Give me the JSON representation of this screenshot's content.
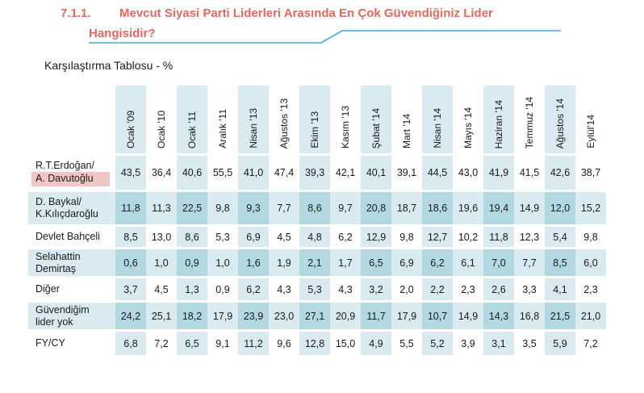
{
  "heading": {
    "number": "7.1.1.",
    "title_line1": "Mevcut Siyasi Parti Liderleri Arasında En Çok Güvendiğiniz Lider",
    "title_line2": "Hangisidir?"
  },
  "subtitle": "Karşılaştırma Tablosu  - %",
  "colors": {
    "title_red": "#E2685F",
    "rule_blue": "#3AAEDB",
    "cell_light_blue": "#D9EAF1",
    "cell_dark_blue": "#B2D8E2",
    "highlight_pink": "#F1C7C5",
    "text": "#1A1A1A"
  },
  "chart_data": {
    "type": "table",
    "title": "Mevcut Siyasi Parti Liderleri Arasında En Çok Güvendiğiniz Lider Hangisidir?",
    "unit": "%",
    "columns": [
      "Ocak '09",
      "Ocak '10",
      "Ocak '11",
      "Aralık '11",
      "Nisan '13",
      "Ağustos '13",
      "Ekim '13",
      "Kasım '13",
      "Şubat '14",
      "Mart '14",
      "Nisan '14",
      "Mayıs '14",
      "Haziran '14",
      "Temmuz '14",
      "Ağustos '14",
      "Eylül'14"
    ],
    "rows": [
      {
        "label_lines": [
          "R.T.Erdoğan/",
          "A. Davutoğlu"
        ],
        "highlight_second_line": true,
        "shaded": false,
        "values": [
          "43,5",
          "36,4",
          "40,6",
          "55,5",
          "41,0",
          "47,4",
          "39,3",
          "42,1",
          "40,1",
          "39,1",
          "44,5",
          "43,0",
          "41,9",
          "41,5",
          "42,6",
          "38,7"
        ]
      },
      {
        "label_lines": [
          "D. Baykal/",
          "K.Kılıçdaroğlu"
        ],
        "highlight_second_line": false,
        "shaded": true,
        "values": [
          "11,8",
          "11,3",
          "22,5",
          "9,8",
          "9,3",
          "7,7",
          "8,6",
          "9,7",
          "20,8",
          "18,7",
          "18,6",
          "19,6",
          "19,4",
          "14,9",
          "12,0",
          "15,2"
        ]
      },
      {
        "label_lines": [
          "Devlet Bahçeli"
        ],
        "highlight_second_line": false,
        "shaded": false,
        "values": [
          "8,5",
          "13,0",
          "8,6",
          "5,3",
          "6,9",
          "4,5",
          "4,8",
          "6,2",
          "12,9",
          "9,8",
          "12,7",
          "10,2",
          "11,8",
          "12,3",
          "5,4",
          "9,8"
        ]
      },
      {
        "label_lines": [
          "Selahattin",
          "Demirtaş"
        ],
        "highlight_second_line": false,
        "shaded": true,
        "values": [
          "0,6",
          "1,0",
          "0,9",
          "1,0",
          "1,6",
          "1,9",
          "2,1",
          "1,7",
          "6,5",
          "6,9",
          "6,2",
          "6,1",
          "7,0",
          "7,7",
          "8,5",
          "6,0"
        ]
      },
      {
        "label_lines": [
          "Diğer"
        ],
        "highlight_second_line": false,
        "shaded": false,
        "values": [
          "3,7",
          "4,5",
          "1,3",
          "0,9",
          "6,2",
          "4,3",
          "5,3",
          "4,3",
          "3,2",
          "2,0",
          "2,2",
          "2,3",
          "2,6",
          "3,3",
          "4,1",
          "2,3"
        ]
      },
      {
        "label_lines": [
          "Güvendiğim",
          "lider yok"
        ],
        "highlight_second_line": false,
        "shaded": true,
        "values": [
          "24,2",
          "25,1",
          "18,2",
          "17,9",
          "23,9",
          "23,0",
          "27,1",
          "20,9",
          "11,7",
          "17,9",
          "10,7",
          "14,9",
          "14,3",
          "16,8",
          "21,5",
          "21,0"
        ]
      },
      {
        "label_lines": [
          "FY/CY"
        ],
        "highlight_second_line": false,
        "shaded": false,
        "values": [
          "6,8",
          "7,2",
          "6,5",
          "9,1",
          "11,2",
          "9,6",
          "12,8",
          "15,0",
          "4,9",
          "5,5",
          "5,2",
          "3,9",
          "3,1",
          "3,5",
          "5,9",
          "7,2"
        ]
      }
    ]
  }
}
